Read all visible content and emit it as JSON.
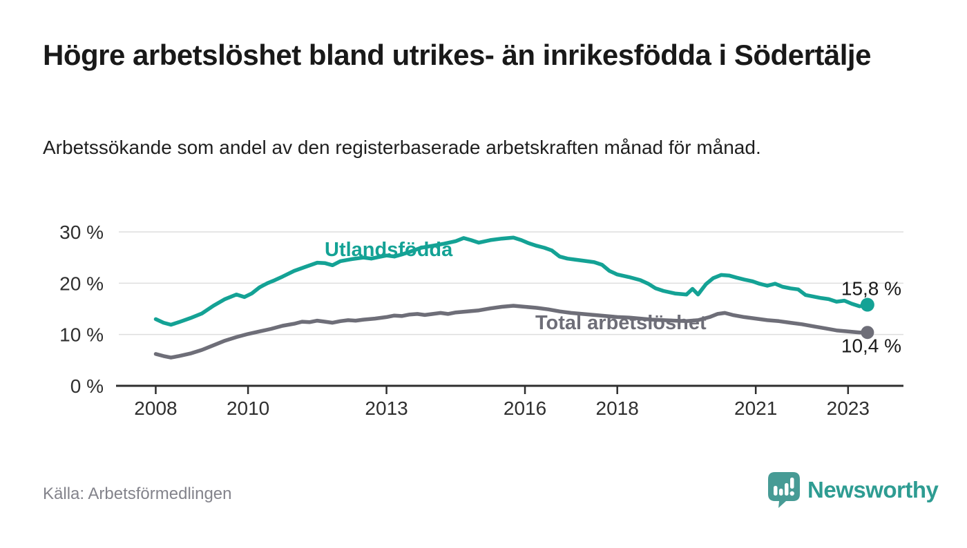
{
  "chart_data": {
    "type": "line",
    "title": "Högre arbetslöshet bland utrikes- än inrikesfödda i Södertälje",
    "subtitle": "Arbetssökande som andel av den registerbaserade arbetskraften månad för månad.",
    "source": "Källa: Arbetsförmedlingen",
    "xlabel": "",
    "ylabel": "",
    "xlim": [
      2007.2,
      2024.2
    ],
    "ylim": [
      0,
      30
    ],
    "x_ticks": [
      2008,
      2010,
      2013,
      2016,
      2018,
      2021,
      2023
    ],
    "y_ticks": [
      0,
      10,
      20,
      30
    ],
    "y_tick_suffix": " %",
    "grid": "horizontal",
    "grid_color": "#dedede",
    "axis_color": "#2e2e2e",
    "series": [
      {
        "name": "Utlandsfödda",
        "inline_label": "Utlandsfödda",
        "end_label": "15,8 %",
        "end_value": 15.8,
        "color": "#14a295",
        "points": [
          [
            2008.0,
            13.0
          ],
          [
            2008.17,
            12.3
          ],
          [
            2008.33,
            11.9
          ],
          [
            2008.5,
            12.4
          ],
          [
            2008.75,
            13.2
          ],
          [
            2009.0,
            14.1
          ],
          [
            2009.25,
            15.6
          ],
          [
            2009.5,
            16.9
          ],
          [
            2009.75,
            17.8
          ],
          [
            2009.92,
            17.3
          ],
          [
            2010.08,
            18.0
          ],
          [
            2010.25,
            19.2
          ],
          [
            2010.42,
            20.0
          ],
          [
            2010.58,
            20.6
          ],
          [
            2010.75,
            21.3
          ],
          [
            2011.0,
            22.4
          ],
          [
            2011.25,
            23.2
          ],
          [
            2011.5,
            24.0
          ],
          [
            2011.67,
            23.9
          ],
          [
            2011.83,
            23.5
          ],
          [
            2012.0,
            24.3
          ],
          [
            2012.25,
            24.7
          ],
          [
            2012.5,
            25.0
          ],
          [
            2012.67,
            24.8
          ],
          [
            2012.83,
            25.1
          ],
          [
            2013.0,
            25.4
          ],
          [
            2013.17,
            25.2
          ],
          [
            2013.33,
            25.6
          ],
          [
            2013.5,
            26.1
          ],
          [
            2013.75,
            26.9
          ],
          [
            2014.0,
            27.3
          ],
          [
            2014.25,
            27.7
          ],
          [
            2014.5,
            28.2
          ],
          [
            2014.67,
            28.8
          ],
          [
            2014.83,
            28.4
          ],
          [
            2015.0,
            27.9
          ],
          [
            2015.25,
            28.4
          ],
          [
            2015.5,
            28.7
          ],
          [
            2015.75,
            28.9
          ],
          [
            2015.92,
            28.4
          ],
          [
            2016.08,
            27.8
          ],
          [
            2016.25,
            27.3
          ],
          [
            2016.42,
            26.9
          ],
          [
            2016.58,
            26.4
          ],
          [
            2016.75,
            25.2
          ],
          [
            2016.92,
            24.8
          ],
          [
            2017.08,
            24.6
          ],
          [
            2017.25,
            24.4
          ],
          [
            2017.5,
            24.1
          ],
          [
            2017.67,
            23.6
          ],
          [
            2017.83,
            22.4
          ],
          [
            2018.0,
            21.7
          ],
          [
            2018.25,
            21.2
          ],
          [
            2018.5,
            20.6
          ],
          [
            2018.67,
            19.9
          ],
          [
            2018.83,
            19.0
          ],
          [
            2019.0,
            18.5
          ],
          [
            2019.25,
            18.0
          ],
          [
            2019.5,
            17.8
          ],
          [
            2019.63,
            18.9
          ],
          [
            2019.75,
            17.8
          ],
          [
            2019.92,
            19.8
          ],
          [
            2020.08,
            21.0
          ],
          [
            2020.25,
            21.6
          ],
          [
            2020.42,
            21.5
          ],
          [
            2020.58,
            21.1
          ],
          [
            2020.75,
            20.7
          ],
          [
            2020.92,
            20.4
          ],
          [
            2021.08,
            19.9
          ],
          [
            2021.25,
            19.5
          ],
          [
            2021.42,
            19.9
          ],
          [
            2021.58,
            19.3
          ],
          [
            2021.75,
            19.0
          ],
          [
            2021.92,
            18.8
          ],
          [
            2022.08,
            17.7
          ],
          [
            2022.25,
            17.4
          ],
          [
            2022.42,
            17.1
          ],
          [
            2022.58,
            16.9
          ],
          [
            2022.75,
            16.4
          ],
          [
            2022.92,
            16.6
          ],
          [
            2023.08,
            16.0
          ],
          [
            2023.25,
            15.5
          ],
          [
            2023.42,
            15.8
          ]
        ]
      },
      {
        "name": "Total arbetslöshet",
        "inline_label": "Total arbetslöshet",
        "end_label": "10,4 %",
        "end_value": 10.4,
        "color": "#6e6e78",
        "points": [
          [
            2008.0,
            6.2
          ],
          [
            2008.17,
            5.8
          ],
          [
            2008.33,
            5.5
          ],
          [
            2008.5,
            5.8
          ],
          [
            2008.75,
            6.3
          ],
          [
            2009.0,
            7.0
          ],
          [
            2009.25,
            7.9
          ],
          [
            2009.5,
            8.8
          ],
          [
            2009.75,
            9.5
          ],
          [
            2010.0,
            10.1
          ],
          [
            2010.25,
            10.6
          ],
          [
            2010.5,
            11.1
          ],
          [
            2010.75,
            11.7
          ],
          [
            2011.0,
            12.1
          ],
          [
            2011.17,
            12.5
          ],
          [
            2011.33,
            12.4
          ],
          [
            2011.5,
            12.7
          ],
          [
            2011.67,
            12.5
          ],
          [
            2011.83,
            12.3
          ],
          [
            2012.0,
            12.6
          ],
          [
            2012.17,
            12.8
          ],
          [
            2012.33,
            12.7
          ],
          [
            2012.5,
            12.9
          ],
          [
            2012.75,
            13.1
          ],
          [
            2013.0,
            13.4
          ],
          [
            2013.17,
            13.7
          ],
          [
            2013.33,
            13.6
          ],
          [
            2013.5,
            13.9
          ],
          [
            2013.67,
            14.0
          ],
          [
            2013.83,
            13.8
          ],
          [
            2014.0,
            14.0
          ],
          [
            2014.17,
            14.2
          ],
          [
            2014.33,
            14.0
          ],
          [
            2014.5,
            14.3
          ],
          [
            2014.75,
            14.5
          ],
          [
            2015.0,
            14.7
          ],
          [
            2015.25,
            15.1
          ],
          [
            2015.5,
            15.4
          ],
          [
            2015.75,
            15.6
          ],
          [
            2016.0,
            15.4
          ],
          [
            2016.25,
            15.2
          ],
          [
            2016.5,
            14.9
          ],
          [
            2016.75,
            14.5
          ],
          [
            2017.0,
            14.2
          ],
          [
            2017.25,
            14.0
          ],
          [
            2017.5,
            13.8
          ],
          [
            2017.75,
            13.6
          ],
          [
            2018.0,
            13.4
          ],
          [
            2018.25,
            13.3
          ],
          [
            2018.5,
            13.1
          ],
          [
            2018.75,
            12.9
          ],
          [
            2019.0,
            12.8
          ],
          [
            2019.25,
            12.7
          ],
          [
            2019.5,
            12.6
          ],
          [
            2019.75,
            12.8
          ],
          [
            2020.0,
            13.4
          ],
          [
            2020.17,
            14.0
          ],
          [
            2020.33,
            14.2
          ],
          [
            2020.5,
            13.8
          ],
          [
            2020.75,
            13.4
          ],
          [
            2021.0,
            13.1
          ],
          [
            2021.25,
            12.8
          ],
          [
            2021.5,
            12.6
          ],
          [
            2021.75,
            12.3
          ],
          [
            2022.0,
            12.0
          ],
          [
            2022.25,
            11.6
          ],
          [
            2022.5,
            11.2
          ],
          [
            2022.75,
            10.8
          ],
          [
            2023.0,
            10.6
          ],
          [
            2023.25,
            10.4
          ],
          [
            2023.42,
            10.4
          ]
        ]
      }
    ]
  },
  "footer": {
    "brand": "Newsworthy",
    "brand_color": "#2e9c92",
    "logo_fill": "#479b95"
  }
}
